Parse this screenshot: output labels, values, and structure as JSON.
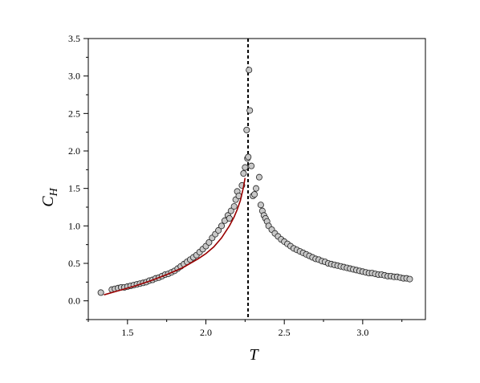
{
  "chart_data": {
    "type": "scatter",
    "xlabel": "T",
    "ylabel": {
      "main": "C",
      "sub": "H"
    },
    "xlim": [
      1.25,
      3.4
    ],
    "ylim": [
      -0.25,
      3.5
    ],
    "xticks": [
      1.5,
      2.0,
      2.5,
      3.0
    ],
    "xtick_labels": [
      "1.5",
      "2.0",
      "2.5",
      "3.0"
    ],
    "yticks": [
      0.0,
      0.5,
      1.0,
      1.5,
      2.0,
      2.5,
      3.0,
      3.5
    ],
    "ytick_labels": [
      "0.0",
      "0.5",
      "1.0",
      "1.5",
      "2.0",
      "2.5",
      "3.0",
      "3.5"
    ],
    "grid": false,
    "legend": false,
    "critical_line": {
      "x": 2.269,
      "style": "dashed",
      "color": "#000000"
    },
    "series": [
      {
        "type": "scatter",
        "marker": "circle",
        "fill": "#c8c8c8",
        "stroke": "#222222",
        "x": [
          1.33,
          1.4,
          1.42,
          1.44,
          1.46,
          1.48,
          1.5,
          1.52,
          1.54,
          1.56,
          1.58,
          1.6,
          1.62,
          1.64,
          1.66,
          1.68,
          1.7,
          1.72,
          1.74,
          1.76,
          1.78,
          1.8,
          1.82,
          1.84,
          1.86,
          1.88,
          1.9,
          1.92,
          1.94,
          1.96,
          1.98,
          2.0,
          2.02,
          2.04,
          2.06,
          2.08,
          2.1,
          2.12,
          2.14,
          2.15,
          2.16,
          2.18,
          2.19,
          2.2,
          2.21,
          2.23,
          2.24,
          2.25,
          2.26,
          2.265,
          2.27,
          2.275,
          2.28,
          2.29,
          2.3,
          2.31,
          2.32,
          2.34,
          2.35,
          2.36,
          2.37,
          2.38,
          2.39,
          2.4,
          2.42,
          2.44,
          2.46,
          2.48,
          2.5,
          2.52,
          2.54,
          2.56,
          2.58,
          2.6,
          2.62,
          2.64,
          2.66,
          2.68,
          2.7,
          2.72,
          2.74,
          2.76,
          2.78,
          2.8,
          2.82,
          2.84,
          2.86,
          2.88,
          2.9,
          2.92,
          2.94,
          2.96,
          2.98,
          3.0,
          3.02,
          3.04,
          3.06,
          3.08,
          3.1,
          3.12,
          3.14,
          3.16,
          3.18,
          3.2,
          3.22,
          3.24,
          3.26,
          3.28,
          3.3
        ],
        "y": [
          0.11,
          0.15,
          0.16,
          0.17,
          0.18,
          0.18,
          0.19,
          0.2,
          0.21,
          0.22,
          0.23,
          0.24,
          0.25,
          0.27,
          0.28,
          0.3,
          0.31,
          0.33,
          0.35,
          0.36,
          0.38,
          0.4,
          0.43,
          0.46,
          0.49,
          0.52,
          0.55,
          0.58,
          0.61,
          0.65,
          0.69,
          0.73,
          0.78,
          0.84,
          0.89,
          0.94,
          1.0,
          1.07,
          1.14,
          1.1,
          1.2,
          1.26,
          1.35,
          1.46,
          1.4,
          1.54,
          1.7,
          1.78,
          2.28,
          1.9,
          1.92,
          3.08,
          2.54,
          1.8,
          1.4,
          1.42,
          1.5,
          1.65,
          1.28,
          1.2,
          1.14,
          1.1,
          1.06,
          1.0,
          0.95,
          0.9,
          0.86,
          0.82,
          0.79,
          0.76,
          0.73,
          0.7,
          0.68,
          0.66,
          0.64,
          0.62,
          0.6,
          0.58,
          0.56,
          0.55,
          0.53,
          0.52,
          0.5,
          0.49,
          0.48,
          0.47,
          0.46,
          0.45,
          0.44,
          0.43,
          0.42,
          0.41,
          0.4,
          0.39,
          0.38,
          0.37,
          0.37,
          0.36,
          0.35,
          0.35,
          0.34,
          0.33,
          0.33,
          0.32,
          0.32,
          0.31,
          0.3,
          0.3,
          0.29
        ]
      },
      {
        "type": "line",
        "color": "#990000",
        "x": [
          1.35,
          1.45,
          1.55,
          1.65,
          1.75,
          1.85,
          1.95,
          2.0,
          2.05,
          2.1,
          2.15,
          2.18,
          2.2,
          2.22,
          2.24,
          2.25
        ],
        "y": [
          0.08,
          0.14,
          0.2,
          0.27,
          0.35,
          0.44,
          0.56,
          0.63,
          0.72,
          0.84,
          1.0,
          1.12,
          1.22,
          1.34,
          1.52,
          1.64
        ]
      }
    ]
  }
}
